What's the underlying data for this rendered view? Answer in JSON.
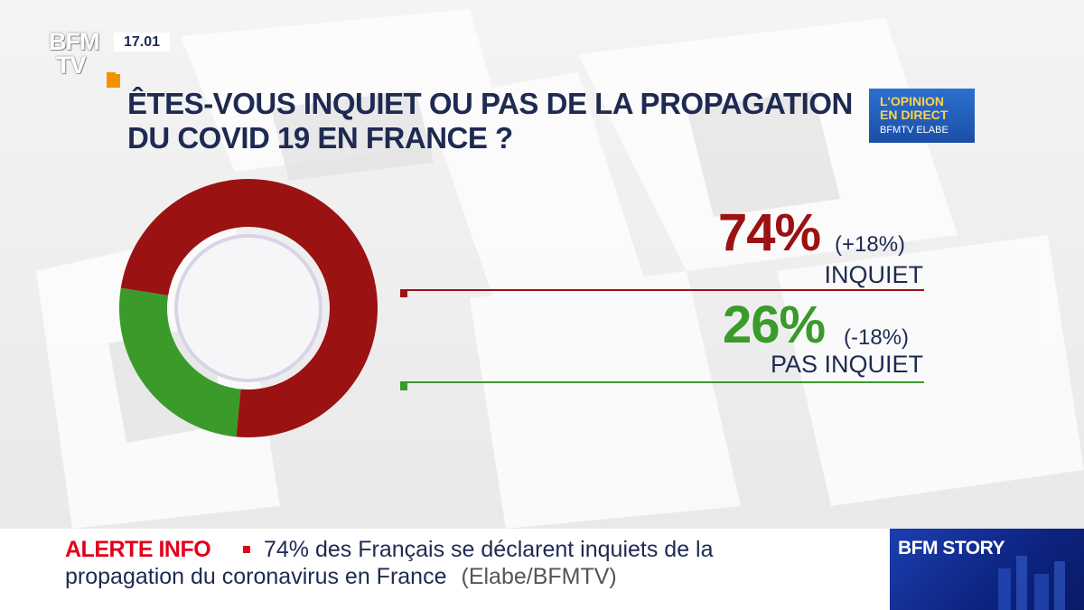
{
  "channel": {
    "logo_line1": "BFM",
    "logo_line2": "TV",
    "time": "17.01"
  },
  "poll": {
    "question_line1": "ÊTES-VOUS INQUIET OU PAS DE LA PROPAGATION",
    "question_line2": "DU COVID 19 EN FRANCE ?",
    "badge_line1": "L'OPINION",
    "badge_line2": "EN DIRECT",
    "badge_line3": "BFMTV ELABE",
    "results": [
      {
        "percent": "74%",
        "change": "(+18%)",
        "label": "INQUIET"
      },
      {
        "percent": "26%",
        "change": "(-18%)",
        "label": "PAS INQUIET"
      }
    ]
  },
  "colors": {
    "inquiet": "#9b1212",
    "pas_inquiet": "#3a9a2a",
    "navy": "#1e2a52",
    "alert_red": "#e2001a"
  },
  "chart_data": {
    "type": "pie",
    "title": "ÊTES-VOUS INQUIET OU PAS DE LA PROPAGATION DU COVID 19 EN FRANCE ?",
    "categories": [
      "INQUIET",
      "PAS INQUIET"
    ],
    "values": [
      74,
      26
    ],
    "changes": [
      18,
      -18
    ],
    "colors": [
      "#9b1212",
      "#3a9a2a"
    ],
    "style": "donut"
  },
  "ticker": {
    "alert_label": "ALERTE INFO",
    "line1": "74% des Français se déclarent inquiets de la",
    "line2": "propagation du coronavirus en France",
    "source": "(Elabe/BFMTV)"
  },
  "program": {
    "name": "BFM STORY"
  }
}
